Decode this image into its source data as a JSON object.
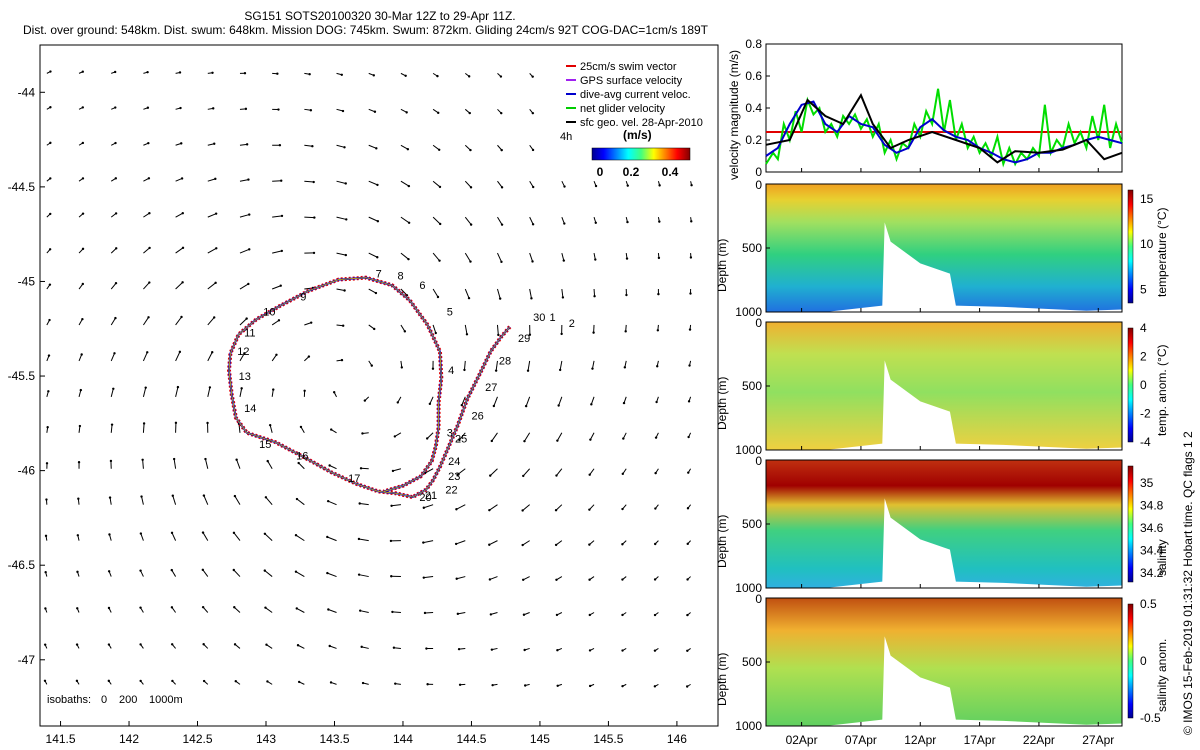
{
  "title": {
    "line1": "SG151 SOTS20100320 30-Mar 12Z to 29-Apr 11Z.",
    "line2": "Dist. over ground: 548km. Dist. swum: 648km. Mission DOG: 745km. Swum: 872km. Gliding 24cm/s 92T COG-DAC=1cm/s 189T"
  },
  "side_label": "© IMOS 15-Feb-2019 01:31:32 Hobart time. QC flags 1  2",
  "chart_data": [
    {
      "type": "scatter",
      "id": "track_map",
      "x_ticks": [
        "141.5",
        "142",
        "142.5",
        "143",
        "143.5",
        "144",
        "144.5",
        "145",
        "145.5",
        "146"
      ],
      "y_ticks": [
        "-44",
        "-44.5",
        "-45",
        "-45.5",
        "-46",
        "-46.5",
        "-47"
      ],
      "xlim": [
        141.35,
        146.3
      ],
      "ylim": [
        -47.35,
        -43.75
      ],
      "legend": {
        "position": "top-right",
        "entries": [
          {
            "label": "25cm/s swim vector",
            "color": "#e00000"
          },
          {
            "label": "GPS surface velocity",
            "color": "#a020f0"
          },
          {
            "label": "dive-avg current veloc.",
            "color": "#0000cc"
          },
          {
            "label": "net glider velocity",
            "color": "#00cc00"
          },
          {
            "label": "sfc geo. vel. 28-Apr-2010",
            "color": "#000000"
          }
        ],
        "scale_label": "4h",
        "units": "(m/s)",
        "colorbar_ticks": [
          "0",
          "0.2",
          "0.4"
        ]
      },
      "isobaths": {
        "label": "isobaths:",
        "values": [
          "0",
          "200",
          "1000m"
        ]
      },
      "track": [
        [
          144.78,
          -45.24
        ],
        [
          144.72,
          -45.29
        ],
        [
          144.64,
          -45.37
        ],
        [
          144.56,
          -45.49
        ],
        [
          144.47,
          -45.62
        ],
        [
          144.4,
          -45.76
        ],
        [
          144.33,
          -45.88
        ],
        [
          144.27,
          -45.98
        ],
        [
          144.22,
          -46.05
        ],
        [
          144.17,
          -46.1
        ],
        [
          144.07,
          -46.14
        ],
        [
          143.95,
          -46.12
        ],
        [
          143.82,
          -46.11
        ],
        [
          143.66,
          -46.07
        ],
        [
          143.48,
          -46.01
        ],
        [
          143.28,
          -45.93
        ],
        [
          143.07,
          -45.85
        ],
        [
          142.86,
          -45.8
        ],
        [
          142.78,
          -45.72
        ],
        [
          142.75,
          -45.6
        ],
        [
          142.73,
          -45.47
        ],
        [
          142.74,
          -45.38
        ],
        [
          142.8,
          -45.28
        ],
        [
          142.93,
          -45.2
        ],
        [
          143.1,
          -45.13
        ],
        [
          143.31,
          -45.05
        ],
        [
          143.53,
          -44.99
        ],
        [
          143.73,
          -44.98
        ],
        [
          143.92,
          -45.02
        ],
        [
          144.05,
          -45.1
        ],
        [
          144.18,
          -45.23
        ],
        [
          144.27,
          -45.37
        ],
        [
          144.28,
          -45.51
        ],
        [
          144.26,
          -45.64
        ],
        [
          144.26,
          -45.77
        ],
        [
          144.24,
          -45.87
        ],
        [
          144.21,
          -45.95
        ],
        [
          144.13,
          -46.03
        ],
        [
          144.0,
          -46.08
        ],
        [
          143.86,
          -46.11
        ]
      ],
      "day_labels": [
        {
          "t": "30",
          "x": 144.95,
          "y": -45.21
        },
        {
          "t": "1",
          "x": 145.07,
          "y": -45.21
        },
        {
          "t": "2",
          "x": 145.21,
          "y": -45.24
        },
        {
          "t": "29",
          "x": 144.84,
          "y": -45.32
        },
        {
          "t": "28",
          "x": 144.7,
          "y": -45.44
        },
        {
          "t": "27",
          "x": 144.6,
          "y": -45.58
        },
        {
          "t": "26",
          "x": 144.5,
          "y": -45.73
        },
        {
          "t": "25",
          "x": 144.38,
          "y": -45.85
        },
        {
          "t": "3",
          "x": 144.32,
          "y": -45.82
        },
        {
          "t": "24",
          "x": 144.33,
          "y": -45.97
        },
        {
          "t": "23",
          "x": 144.33,
          "y": -46.05
        },
        {
          "t": "22",
          "x": 144.31,
          "y": -46.12
        },
        {
          "t": "21",
          "x": 144.16,
          "y": -46.15
        },
        {
          "t": "20",
          "x": 144.12,
          "y": -46.16
        },
        {
          "t": "4",
          "x": 144.33,
          "y": -45.49
        },
        {
          "t": "5",
          "x": 144.32,
          "y": -45.18
        },
        {
          "t": "6",
          "x": 144.12,
          "y": -45.04
        },
        {
          "t": "7",
          "x": 143.8,
          "y": -44.98
        },
        {
          "t": "8",
          "x": 143.96,
          "y": -44.99
        },
        {
          "t": "9",
          "x": 143.25,
          "y": -45.1
        },
        {
          "t": "10",
          "x": 142.98,
          "y": -45.18
        },
        {
          "t": "11",
          "x": 142.84,
          "y": -45.29
        },
        {
          "t": "12",
          "x": 142.79,
          "y": -45.39
        },
        {
          "t": "13",
          "x": 142.8,
          "y": -45.52
        },
        {
          "t": "14",
          "x": 142.84,
          "y": -45.69
        },
        {
          "t": "15",
          "x": 142.95,
          "y": -45.88
        },
        {
          "t": "16",
          "x": 143.22,
          "y": -45.94
        },
        {
          "t": "17",
          "x": 143.6,
          "y": -46.06
        }
      ]
    },
    {
      "type": "line",
      "id": "velocity",
      "ylabel": "velocity magnitude (m/s)",
      "ylim": [
        0,
        0.8
      ],
      "y_ticks": [
        "0",
        "0.2",
        "0.4",
        "0.6",
        "0.8"
      ],
      "xlim": [
        0,
        30
      ],
      "series": [
        {
          "color": "#e00000",
          "values": [
            [
              0,
              0.25
            ],
            [
              30,
              0.25
            ]
          ]
        },
        {
          "color": "#00dd00",
          "values": [
            [
              0,
              0.05
            ],
            [
              0.6,
              0.12
            ],
            [
              1,
              0.08
            ],
            [
              1.5,
              0.3
            ],
            [
              2,
              0.2
            ],
            [
              2.5,
              0.38
            ],
            [
              3,
              0.25
            ],
            [
              3.5,
              0.45
            ],
            [
              4,
              0.36
            ],
            [
              4.5,
              0.4
            ],
            [
              5,
              0.25
            ],
            [
              5.5,
              0.3
            ],
            [
              6,
              0.22
            ],
            [
              6.5,
              0.35
            ],
            [
              7,
              0.3
            ],
            [
              7.5,
              0.36
            ],
            [
              8,
              0.27
            ],
            [
              8.5,
              0.33
            ],
            [
              9,
              0.22
            ],
            [
              9.5,
              0.3
            ],
            [
              10,
              0.12
            ],
            [
              10.5,
              0.2
            ],
            [
              11,
              0.08
            ],
            [
              11.5,
              0.18
            ],
            [
              12,
              0.15
            ],
            [
              12.5,
              0.3
            ],
            [
              13,
              0.22
            ],
            [
              13.5,
              0.38
            ],
            [
              14,
              0.3
            ],
            [
              14.5,
              0.52
            ],
            [
              15,
              0.25
            ],
            [
              15.5,
              0.45
            ],
            [
              16,
              0.2
            ],
            [
              16.5,
              0.3
            ],
            [
              17,
              0.15
            ],
            [
              17.5,
              0.22
            ],
            [
              18,
              0.12
            ],
            [
              18.5,
              0.18
            ],
            [
              19,
              0.1
            ],
            [
              19.5,
              0.22
            ],
            [
              20,
              0.05
            ],
            [
              20.5,
              0.15
            ],
            [
              21,
              0.05
            ],
            [
              21.5,
              0.12
            ],
            [
              22,
              0.08
            ],
            [
              22.5,
              0.15
            ],
            [
              23,
              0.1
            ],
            [
              23.5,
              0.42
            ],
            [
              24,
              0.12
            ],
            [
              24.5,
              0.2
            ],
            [
              25,
              0.15
            ],
            [
              25.5,
              0.3
            ],
            [
              26,
              0.18
            ],
            [
              26.5,
              0.25
            ],
            [
              27,
              0.15
            ],
            [
              27.5,
              0.35
            ],
            [
              28,
              0.2
            ],
            [
              28.5,
              0.42
            ],
            [
              29,
              0.15
            ],
            [
              29.5,
              0.3
            ],
            [
              30,
              0.18
            ]
          ]
        },
        {
          "color": "#0000cc",
          "values": [
            [
              0,
              0.1
            ],
            [
              1,
              0.15
            ],
            [
              2,
              0.3
            ],
            [
              3,
              0.42
            ],
            [
              4,
              0.44
            ],
            [
              5,
              0.3
            ],
            [
              6,
              0.25
            ],
            [
              7,
              0.35
            ],
            [
              8,
              0.3
            ],
            [
              9,
              0.28
            ],
            [
              10,
              0.17
            ],
            [
              11,
              0.12
            ],
            [
              12,
              0.15
            ],
            [
              13,
              0.28
            ],
            [
              14,
              0.33
            ],
            [
              15,
              0.26
            ],
            [
              16,
              0.22
            ],
            [
              17,
              0.2
            ],
            [
              18,
              0.15
            ],
            [
              19,
              0.12
            ],
            [
              20,
              0.08
            ],
            [
              21,
              0.06
            ],
            [
              22,
              0.08
            ],
            [
              23,
              0.12
            ],
            [
              24,
              0.12
            ],
            [
              25,
              0.15
            ],
            [
              26,
              0.17
            ],
            [
              27,
              0.2
            ],
            [
              28,
              0.22
            ],
            [
              29,
              0.2
            ],
            [
              30,
              0.18
            ]
          ]
        },
        {
          "color": "#000000",
          "values": [
            [
              0,
              0.17
            ],
            [
              2,
              0.2
            ],
            [
              3.5,
              0.45
            ],
            [
              5,
              0.35
            ],
            [
              6.5,
              0.3
            ],
            [
              8,
              0.48
            ],
            [
              9,
              0.3
            ],
            [
              10.5,
              0.15
            ],
            [
              12,
              0.2
            ],
            [
              14,
              0.25
            ],
            [
              16,
              0.2
            ],
            [
              18,
              0.15
            ],
            [
              19.5,
              0.06
            ],
            [
              21,
              0.13
            ],
            [
              23,
              0.12
            ],
            [
              25,
              0.14
            ],
            [
              27,
              0.2
            ],
            [
              28.5,
              0.08
            ],
            [
              30,
              0.12
            ]
          ]
        }
      ]
    },
    {
      "type": "heatmap",
      "id": "temperature",
      "ylabel": "Depth (m)",
      "cbar_label": "temperature (°C)",
      "y_ticks": [
        "0",
        "500",
        "1000"
      ],
      "cbar_ticks": [
        "15",
        "10",
        "5"
      ],
      "cmap": "jet_reversed_warm_top"
    },
    {
      "type": "heatmap",
      "id": "temp_anom",
      "ylabel": "Depth (m)",
      "cbar_label": "temp. anom. (°C)",
      "y_ticks": [
        "0",
        "500",
        "1000"
      ],
      "cbar_ticks": [
        "4",
        "2",
        "0",
        "-2",
        "-4"
      ],
      "cmap": "jet"
    },
    {
      "type": "heatmap",
      "id": "salinity",
      "ylabel": "Depth (m)",
      "cbar_label": "salinity",
      "y_ticks": [
        "0",
        "500",
        "1000"
      ],
      "cbar_ticks": [
        "35",
        "34.8",
        "34.6",
        "34.4",
        "34.2"
      ],
      "cmap": "jet"
    },
    {
      "type": "heatmap",
      "id": "salinity_anom",
      "ylabel": "Depth (m)",
      "cbar_label": "salinity anom.",
      "y_ticks": [
        "0",
        "500",
        "1000"
      ],
      "cbar_ticks": [
        "0.5",
        "0",
        "-0.5"
      ],
      "cmap": "jet"
    }
  ],
  "time_axis": {
    "ticks": [
      "02Apr",
      "07Apr",
      "12Apr",
      "17Apr",
      "22Apr",
      "27Apr"
    ],
    "tick_days": [
      3,
      8,
      13,
      18,
      23,
      28
    ]
  }
}
